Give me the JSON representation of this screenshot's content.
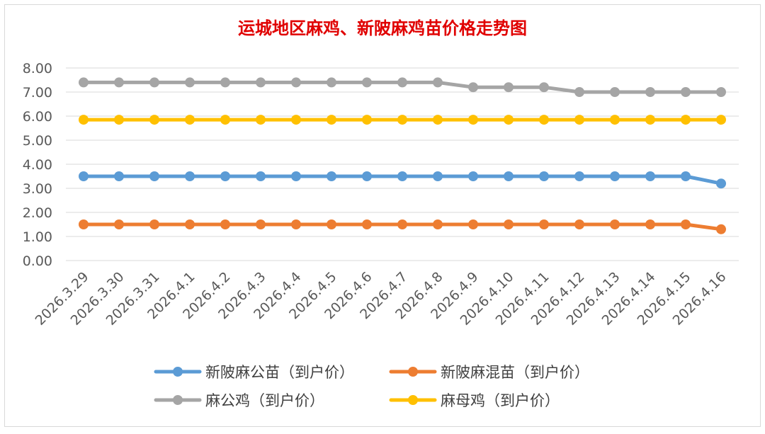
{
  "chart_data": {
    "type": "line",
    "title": "运城地区麻鸡、新陂麻鸡苗价格走势图",
    "xlabel": "",
    "ylabel": "",
    "ylim": [
      0,
      8
    ],
    "y_tick_step": 1,
    "y_tick_labels": [
      "0.00",
      "1.00",
      "2.00",
      "3.00",
      "4.00",
      "5.00",
      "6.00",
      "7.00",
      "8.00"
    ],
    "grid": true,
    "legend_position": "bottom",
    "categories": [
      "2026.3.29",
      "2026.3.30",
      "2026.3.31",
      "2026.4.1",
      "2026.4.2",
      "2026.4.3",
      "2026.4.4",
      "2026.4.5",
      "2026.4.6",
      "2026.4.7",
      "2026.4.8",
      "2026.4.9",
      "2026.4.10",
      "2026.4.11",
      "2026.4.12",
      "2026.4.13",
      "2026.4.14",
      "2026.4.15",
      "2026.4.16"
    ],
    "series": [
      {
        "name": "新陂麻公苗（到户价）",
        "color": "#5B9BD5",
        "values": [
          3.5,
          3.5,
          3.5,
          3.5,
          3.5,
          3.5,
          3.5,
          3.5,
          3.5,
          3.5,
          3.5,
          3.5,
          3.5,
          3.5,
          3.5,
          3.5,
          3.5,
          3.5,
          3.2
        ]
      },
      {
        "name": "新陂麻混苗（到户价）",
        "color": "#ED7D31",
        "values": [
          1.5,
          1.5,
          1.5,
          1.5,
          1.5,
          1.5,
          1.5,
          1.5,
          1.5,
          1.5,
          1.5,
          1.5,
          1.5,
          1.5,
          1.5,
          1.5,
          1.5,
          1.5,
          1.3
        ]
      },
      {
        "name": "麻公鸡（到户价）",
        "color": "#A5A5A5",
        "values": [
          7.4,
          7.4,
          7.4,
          7.4,
          7.4,
          7.4,
          7.4,
          7.4,
          7.4,
          7.4,
          7.4,
          7.2,
          7.2,
          7.2,
          7.0,
          7.0,
          7.0,
          7.0,
          7.0
        ]
      },
      {
        "name": "麻母鸡（到户价）",
        "color": "#FFC000",
        "values": [
          5.85,
          5.85,
          5.85,
          5.85,
          5.85,
          5.85,
          5.85,
          5.85,
          5.85,
          5.85,
          5.85,
          5.85,
          5.85,
          5.85,
          5.85,
          5.85,
          5.85,
          5.85,
          5.85
        ]
      }
    ]
  }
}
